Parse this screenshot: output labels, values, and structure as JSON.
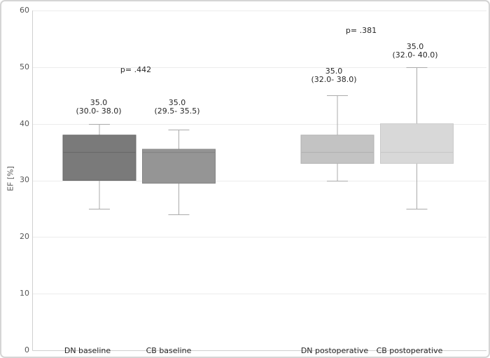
{
  "chart_data": {
    "type": "boxplot",
    "title": "",
    "ylabel": "EF [%]",
    "xlabel": "",
    "ylim": [
      0,
      60
    ],
    "yticks": [
      0,
      10,
      20,
      30,
      40,
      50,
      60
    ],
    "grid": "horizontal",
    "legend": "none",
    "categories": [
      "DN baseline",
      "CB baseline",
      "DN postoperative",
      "CB postoperative"
    ],
    "series": [
      {
        "name": "DN baseline",
        "median": 35.0,
        "q1": 30.0,
        "q3": 38.0,
        "whisker_low": 25.0,
        "whisker_high": 40.0,
        "median_label": "35.0",
        "range_label": "(30.0- 38.0)",
        "fill": "#7a7a7a",
        "stroke": "#696969"
      },
      {
        "name": "CB baseline",
        "median": 35.0,
        "q1": 29.5,
        "q3": 35.5,
        "whisker_low": 24.0,
        "whisker_high": 39.0,
        "median_label": "35.0",
        "range_label": "(29.5- 35.5)",
        "fill": "#959595",
        "stroke": "#858585"
      },
      {
        "name": "DN postoperative",
        "median": 35.0,
        "q1": 32.0,
        "q3": 38.0,
        "whisker_low": 30.0,
        "whisker_high": 45.0,
        "median_label": "35.0",
        "range_label": "(32.0- 38.0)",
        "fill": "#c3c3c3",
        "stroke": "#b2b2b2"
      },
      {
        "name": "CB postoperative",
        "median": 35.0,
        "q1": 32.0,
        "q3": 40.0,
        "whisker_low": 25.0,
        "whisker_high": 50.0,
        "median_label": "35.0",
        "range_label": "(32.0- 40.0)",
        "fill": "#d8d8d8",
        "stroke": "#c9c9c9"
      }
    ],
    "annotations": [
      {
        "text": "p= .442",
        "between": [
          "DN baseline",
          "CB baseline"
        ]
      },
      {
        "text": "p= .381",
        "between": [
          "DN postoperative",
          "CB postoperative"
        ]
      }
    ],
    "colors": {
      "grid": "#ececec",
      "axis": "#cfcfcf",
      "whisker": "#ababab",
      "tick_text": "#565656",
      "label_text": "#262626"
    }
  }
}
